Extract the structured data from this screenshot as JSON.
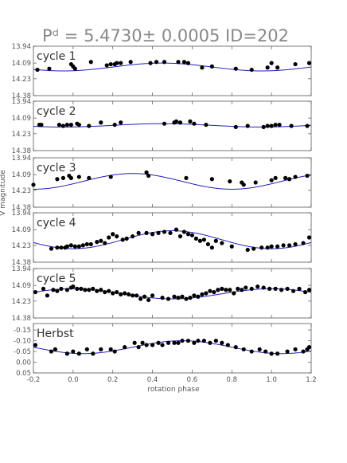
{
  "title": "Pᵈ = 5.4730± 0.0005   ID=202",
  "chart_data": {
    "type": "scatter",
    "title": "Pᵈ = 5.4730± 0.0005   ID=202",
    "xlabel": "rotation phase",
    "ylabel": "V magnitude",
    "xlim": [
      -0.2,
      1.2
    ],
    "x_ticks": [
      -0.2,
      0.0,
      0.2,
      0.4,
      0.6,
      0.8,
      1.0,
      1.2
    ],
    "x_tick_labels": [
      "-0.2",
      "0.0",
      "0.2",
      "0.4",
      "0.6",
      "0.8",
      "1.0",
      "1.2"
    ],
    "colors": {
      "points": "#000000",
      "fit": "#2222bb",
      "frame": "#555555",
      "title": "#888888"
    },
    "panels": [
      {
        "label": "cycle 1",
        "ylim": [
          14.38,
          13.94
        ],
        "y_ticks": [
          13.94,
          14.09,
          14.23,
          14.38
        ],
        "y_tick_labels": [
          "13.94",
          "14.09",
          "14.23",
          "14.38"
        ],
        "fit": {
          "mean": 14.125,
          "amplitude": 0.035,
          "peak_phase": 0.45
        },
        "points": [
          [
            -0.18,
            14.15
          ],
          [
            -0.12,
            14.14
          ],
          [
            -0.01,
            14.1
          ],
          [
            0.0,
            14.12
          ],
          [
            0.01,
            14.14
          ],
          [
            0.09,
            14.08
          ],
          [
            0.17,
            14.11
          ],
          [
            0.19,
            14.1
          ],
          [
            0.21,
            14.1
          ],
          [
            0.22,
            14.09
          ],
          [
            0.24,
            14.09
          ],
          [
            0.29,
            14.08
          ],
          [
            0.39,
            14.09
          ],
          [
            0.42,
            14.08
          ],
          [
            0.46,
            14.08
          ],
          [
            0.53,
            14.08
          ],
          [
            0.56,
            14.08
          ],
          [
            0.58,
            14.09
          ],
          [
            0.65,
            14.13
          ],
          [
            0.7,
            14.12
          ],
          [
            0.82,
            14.14
          ],
          [
            0.9,
            14.15
          ],
          [
            0.98,
            14.13
          ],
          [
            1.0,
            14.09
          ],
          [
            1.03,
            14.13
          ],
          [
            1.12,
            14.1
          ],
          [
            1.19,
            14.09
          ]
        ]
      },
      {
        "label": "cycle 2",
        "ylim": [
          14.38,
          13.94
        ],
        "y_ticks": [
          13.94,
          14.09,
          14.23,
          14.38
        ],
        "y_tick_labels": [
          "13.94",
          "14.09",
          "14.23",
          "14.38"
        ],
        "fit": {
          "mean": 14.155,
          "amplitude": 0.015,
          "peak_phase": 0.45
        },
        "points": [
          [
            -0.17,
            14.15
          ],
          [
            -0.16,
            14.15
          ],
          [
            -0.07,
            14.15
          ],
          [
            -0.05,
            14.16
          ],
          [
            -0.03,
            14.15
          ],
          [
            -0.01,
            14.15
          ],
          [
            0.02,
            14.14
          ],
          [
            0.03,
            14.15
          ],
          [
            0.08,
            14.16
          ],
          [
            0.14,
            14.13
          ],
          [
            0.21,
            14.15
          ],
          [
            0.24,
            14.13
          ],
          [
            0.46,
            14.14
          ],
          [
            0.51,
            14.13
          ],
          [
            0.52,
            14.12
          ],
          [
            0.54,
            14.13
          ],
          [
            0.59,
            14.12
          ],
          [
            0.61,
            14.14
          ],
          [
            0.67,
            14.15
          ],
          [
            0.82,
            14.17
          ],
          [
            0.88,
            14.16
          ],
          [
            0.96,
            14.17
          ],
          [
            0.98,
            14.16
          ],
          [
            1.0,
            14.16
          ],
          [
            1.02,
            14.15
          ],
          [
            1.04,
            14.15
          ],
          [
            1.1,
            14.16
          ],
          [
            1.18,
            14.16
          ]
        ]
      },
      {
        "label": "cycle 3",
        "ylim": [
          14.38,
          13.94
        ],
        "y_ticks": [
          13.94,
          14.09,
          14.23,
          14.38
        ],
        "y_tick_labels": [
          "13.94",
          "14.09",
          "14.23",
          "14.38"
        ],
        "fit": {
          "mean": 14.15,
          "amplitude": 0.07,
          "peak_phase": 0.3
        },
        "points": [
          [
            -0.2,
            14.18
          ],
          [
            -0.08,
            14.13
          ],
          [
            -0.05,
            14.12
          ],
          [
            -0.02,
            14.1
          ],
          [
            -0.01,
            14.12
          ],
          [
            0.03,
            14.11
          ],
          [
            0.08,
            14.12
          ],
          [
            0.19,
            14.11
          ],
          [
            0.37,
            14.07
          ],
          [
            0.38,
            14.1
          ],
          [
            0.57,
            14.12
          ],
          [
            0.7,
            14.13
          ],
          [
            0.79,
            14.15
          ],
          [
            0.85,
            14.16
          ],
          [
            0.86,
            14.18
          ],
          [
            0.92,
            14.16
          ],
          [
            1.0,
            14.14
          ],
          [
            1.02,
            14.12
          ],
          [
            1.07,
            14.12
          ],
          [
            1.09,
            14.13
          ],
          [
            1.12,
            14.11
          ],
          [
            1.18,
            14.1
          ]
        ]
      },
      {
        "label": "cycle 4",
        "ylim": [
          14.38,
          13.94
        ],
        "y_ticks": [
          13.94,
          14.09,
          14.23,
          14.38
        ],
        "y_tick_labels": [
          "13.94",
          "14.09",
          "14.23",
          "14.38"
        ],
        "fit": {
          "mean": 14.18,
          "amplitude": 0.08,
          "peak_phase": 0.5
        },
        "points": [
          [
            -0.11,
            14.26
          ],
          [
            -0.08,
            14.25
          ],
          [
            -0.06,
            14.25
          ],
          [
            -0.04,
            14.25
          ],
          [
            -0.03,
            14.24
          ],
          [
            -0.01,
            14.23
          ],
          [
            0.01,
            14.24
          ],
          [
            0.03,
            14.24
          ],
          [
            0.05,
            14.23
          ],
          [
            0.07,
            14.22
          ],
          [
            0.09,
            14.22
          ],
          [
            0.12,
            14.2
          ],
          [
            0.14,
            14.19
          ],
          [
            0.16,
            14.21
          ],
          [
            0.18,
            14.16
          ],
          [
            0.2,
            14.13
          ],
          [
            0.22,
            14.15
          ],
          [
            0.25,
            14.18
          ],
          [
            0.27,
            14.17
          ],
          [
            0.3,
            14.15
          ],
          [
            0.33,
            14.12
          ],
          [
            0.37,
            14.12
          ],
          [
            0.4,
            14.13
          ],
          [
            0.43,
            14.12
          ],
          [
            0.46,
            14.11
          ],
          [
            0.49,
            14.12
          ],
          [
            0.52,
            14.09
          ],
          [
            0.54,
            14.15
          ],
          [
            0.56,
            14.11
          ],
          [
            0.58,
            14.13
          ],
          [
            0.6,
            14.14
          ],
          [
            0.62,
            14.17
          ],
          [
            0.64,
            14.19
          ],
          [
            0.66,
            14.18
          ],
          [
            0.68,
            14.22
          ],
          [
            0.7,
            14.25
          ],
          [
            0.72,
            14.19
          ],
          [
            0.75,
            14.21
          ],
          [
            0.8,
            14.24
          ],
          [
            0.88,
            14.27
          ],
          [
            0.91,
            14.26
          ],
          [
            0.95,
            14.25
          ],
          [
            0.98,
            14.25
          ],
          [
            1.0,
            14.24
          ],
          [
            1.03,
            14.24
          ],
          [
            1.06,
            14.23
          ],
          [
            1.09,
            14.23
          ],
          [
            1.12,
            14.22
          ],
          [
            1.16,
            14.21
          ],
          [
            1.19,
            14.16
          ]
        ]
      },
      {
        "label": "cycle 5",
        "ylim": [
          14.38,
          13.94
        ],
        "y_ticks": [
          13.94,
          14.09,
          14.23,
          14.38
        ],
        "y_tick_labels": [
          "13.94",
          "14.09",
          "14.23",
          "14.38"
        ],
        "fit": {
          "mean": 14.165,
          "amplitude": 0.045,
          "peak_phase": 0.0
        },
        "points": [
          [
            -0.19,
            14.15
          ],
          [
            -0.15,
            14.12
          ],
          [
            -0.13,
            14.18
          ],
          [
            -0.1,
            14.13
          ],
          [
            -0.08,
            14.14
          ],
          [
            -0.06,
            14.12
          ],
          [
            -0.03,
            14.13
          ],
          [
            -0.01,
            14.11
          ],
          [
            0.0,
            14.1
          ],
          [
            0.02,
            14.12
          ],
          [
            0.04,
            14.12
          ],
          [
            0.06,
            14.13
          ],
          [
            0.08,
            14.13
          ],
          [
            0.1,
            14.12
          ],
          [
            0.12,
            14.14
          ],
          [
            0.14,
            14.13
          ],
          [
            0.16,
            14.15
          ],
          [
            0.18,
            14.14
          ],
          [
            0.2,
            14.16
          ],
          [
            0.22,
            14.15
          ],
          [
            0.24,
            14.17
          ],
          [
            0.26,
            14.16
          ],
          [
            0.28,
            14.17
          ],
          [
            0.3,
            14.18
          ],
          [
            0.32,
            14.18
          ],
          [
            0.34,
            14.21
          ],
          [
            0.36,
            14.19
          ],
          [
            0.38,
            14.22
          ],
          [
            0.4,
            14.18
          ],
          [
            0.45,
            14.2
          ],
          [
            0.48,
            14.21
          ],
          [
            0.51,
            14.19
          ],
          [
            0.53,
            14.2
          ],
          [
            0.55,
            14.19
          ],
          [
            0.57,
            14.21
          ],
          [
            0.59,
            14.2
          ],
          [
            0.61,
            14.18
          ],
          [
            0.63,
            14.19
          ],
          [
            0.65,
            14.17
          ],
          [
            0.67,
            14.16
          ],
          [
            0.69,
            14.14
          ],
          [
            0.71,
            14.15
          ],
          [
            0.73,
            14.13
          ],
          [
            0.75,
            14.12
          ],
          [
            0.77,
            14.13
          ],
          [
            0.79,
            14.13
          ],
          [
            0.81,
            14.16
          ],
          [
            0.83,
            14.12
          ],
          [
            0.85,
            14.13
          ],
          [
            0.87,
            14.11
          ],
          [
            0.9,
            14.12
          ],
          [
            0.93,
            14.1
          ],
          [
            0.96,
            14.11
          ],
          [
            0.99,
            14.12
          ],
          [
            1.02,
            14.12
          ],
          [
            1.05,
            14.13
          ],
          [
            1.08,
            14.12
          ],
          [
            1.11,
            14.14
          ],
          [
            1.14,
            14.12
          ],
          [
            1.17,
            14.15
          ],
          [
            1.19,
            14.13
          ]
        ]
      },
      {
        "label": "Herbst",
        "ylim": [
          0.05,
          -0.18
        ],
        "y_ticks": [
          -0.15,
          -0.1,
          -0.05,
          0.0,
          0.05
        ],
        "y_tick_labels": [
          "-0.15",
          "-0.10",
          "-0.05",
          "0.00",
          "0.05"
        ],
        "fit": {
          "mean": -0.07,
          "amplitude": 0.03,
          "peak_phase": 0.55
        },
        "points": [
          [
            -0.19,
            -0.08
          ],
          [
            -0.11,
            -0.05
          ],
          [
            -0.09,
            -0.06
          ],
          [
            -0.03,
            -0.04
          ],
          [
            0.0,
            -0.05
          ],
          [
            0.03,
            -0.04
          ],
          [
            0.07,
            -0.06
          ],
          [
            0.1,
            -0.04
          ],
          [
            0.14,
            -0.06
          ],
          [
            0.19,
            -0.06
          ],
          [
            0.21,
            -0.05
          ],
          [
            0.26,
            -0.07
          ],
          [
            0.31,
            -0.09
          ],
          [
            0.33,
            -0.07
          ],
          [
            0.35,
            -0.09
          ],
          [
            0.37,
            -0.08
          ],
          [
            0.4,
            -0.08
          ],
          [
            0.43,
            -0.09
          ],
          [
            0.45,
            -0.08
          ],
          [
            0.48,
            -0.09
          ],
          [
            0.51,
            -0.09
          ],
          [
            0.53,
            -0.09
          ],
          [
            0.55,
            -0.1
          ],
          [
            0.58,
            -0.1
          ],
          [
            0.61,
            -0.09
          ],
          [
            0.63,
            -0.1
          ],
          [
            0.66,
            -0.1
          ],
          [
            0.69,
            -0.09
          ],
          [
            0.72,
            -0.1
          ],
          [
            0.75,
            -0.09
          ],
          [
            0.78,
            -0.08
          ],
          [
            0.82,
            -0.07
          ],
          [
            0.86,
            -0.06
          ],
          [
            0.9,
            -0.05
          ],
          [
            0.94,
            -0.06
          ],
          [
            0.97,
            -0.05
          ],
          [
            1.0,
            -0.04
          ],
          [
            1.03,
            -0.04
          ],
          [
            1.08,
            -0.05
          ],
          [
            1.12,
            -0.06
          ],
          [
            1.16,
            -0.05
          ],
          [
            1.18,
            -0.06
          ],
          [
            1.19,
            -0.07
          ]
        ]
      }
    ]
  }
}
